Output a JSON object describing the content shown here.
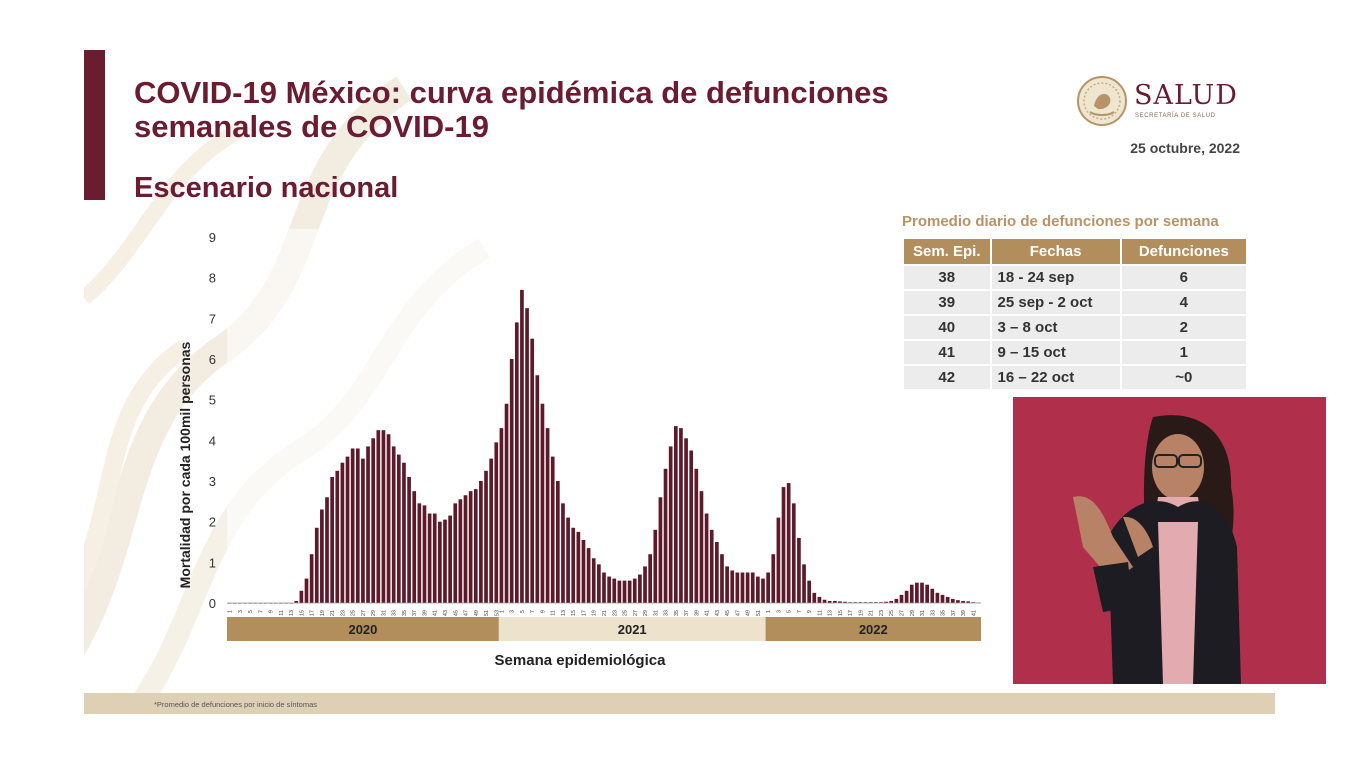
{
  "title": "COVID-19 México: curva epidémica de defunciones semanales de COVID-19",
  "subtitle": "Escenario nacional",
  "logo": {
    "name": "SALUD",
    "tagline": "SECRETARÍA DE SALUD"
  },
  "date": "25 octubre, 2022",
  "table": {
    "title": "Promedio diario de defunciones por semana",
    "headers": [
      "Sem. Epi.",
      "Fechas",
      "Defunciones"
    ],
    "rows": [
      {
        "week": "38",
        "dates": "18 - 24 sep",
        "deaths": "6"
      },
      {
        "week": "39",
        "dates": "25 sep - 2 oct",
        "deaths": "4"
      },
      {
        "week": "40",
        "dates": "3 – 8 oct",
        "deaths": "2"
      },
      {
        "week": "41",
        "dates": "9 – 15 oct",
        "deaths": "1"
      },
      {
        "week": "42",
        "dates": "16 – 22 oct",
        "deaths": "~0"
      }
    ]
  },
  "footnote": "*Promedio de defunciones por inicio de síntomas",
  "colors": {
    "accent": "#6b1c31",
    "bar": "#5c1a2b",
    "gold": "#b38e5d",
    "beige": "#ede3cd"
  },
  "chart_data": {
    "type": "bar",
    "title": "",
    "xlabel": "Semana epidemiológica",
    "ylabel": "Mortalidad por cada 100mil personas",
    "ylim": [
      0,
      9
    ],
    "yticks": [
      "0",
      "1",
      "2",
      "3",
      "4",
      "5",
      "6",
      "7",
      "8",
      "9"
    ],
    "years": [
      {
        "label": "2020",
        "weeks": 53,
        "values": [
          0,
          0,
          0,
          0,
          0,
          0,
          0,
          0,
          0,
          0,
          0,
          0,
          0,
          0.05,
          0.3,
          0.6,
          1.2,
          1.85,
          2.3,
          2.6,
          3.1,
          3.25,
          3.45,
          3.6,
          3.8,
          3.8,
          3.55,
          3.85,
          4.05,
          4.25,
          4.25,
          4.15,
          3.85,
          3.65,
          3.45,
          3.1,
          2.75,
          2.45,
          2.4,
          2.2,
          2.2,
          2.0,
          2.05,
          2.15,
          2.45,
          2.55,
          2.65,
          2.75,
          2.8,
          3.0,
          3.25,
          3.55,
          3.95
        ]
      },
      {
        "label": "2021",
        "weeks": 52,
        "values": [
          4.3,
          4.9,
          6.0,
          6.9,
          7.7,
          7.25,
          6.5,
          5.6,
          4.9,
          4.3,
          3.6,
          3.0,
          2.45,
          2.1,
          1.85,
          1.75,
          1.55,
          1.35,
          1.1,
          0.95,
          0.75,
          0.65,
          0.6,
          0.55,
          0.55,
          0.55,
          0.6,
          0.7,
          0.9,
          1.2,
          1.8,
          2.6,
          3.3,
          3.85,
          4.35,
          4.3,
          4.05,
          3.75,
          3.3,
          2.75,
          2.2,
          1.8,
          1.5,
          1.2,
          0.9,
          0.8,
          0.75,
          0.75,
          0.75,
          0.75,
          0.65,
          0.6
        ]
      },
      {
        "label": "2022",
        "weeks": 42,
        "values": [
          0.75,
          1.2,
          2.1,
          2.85,
          2.95,
          2.45,
          1.6,
          0.95,
          0.55,
          0.25,
          0.15,
          0.08,
          0.05,
          0.05,
          0.04,
          0.03,
          0.02,
          0.02,
          0.02,
          0.02,
          0.02,
          0.02,
          0.02,
          0.03,
          0.05,
          0.1,
          0.2,
          0.3,
          0.45,
          0.5,
          0.5,
          0.45,
          0.35,
          0.25,
          0.2,
          0.15,
          0.1,
          0.07,
          0.05,
          0.04,
          0.02,
          0.01
        ]
      }
    ],
    "year_label_tones": [
      "gold",
      "beige",
      "gold"
    ]
  }
}
